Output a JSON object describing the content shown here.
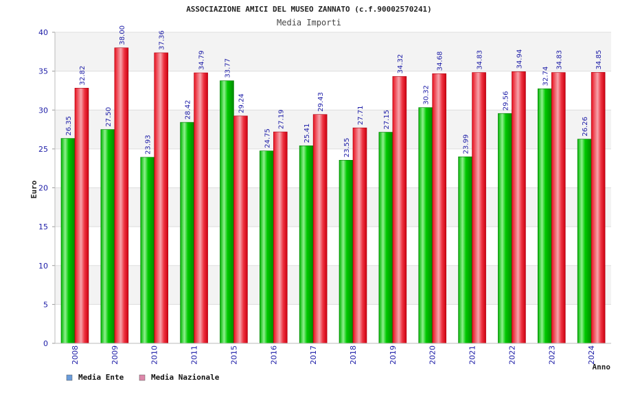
{
  "chart_data": {
    "type": "bar",
    "title": "ASSOCIAZIONE AMICI DEL MUSEO ZANNATO (c.f.90002570241)",
    "subtitle": "Media Importi",
    "xlabel": "Anno",
    "ylabel": "Euro",
    "ylim": [
      0,
      40
    ],
    "yticks": [
      0,
      5,
      10,
      15,
      20,
      25,
      30,
      35,
      40
    ],
    "categories": [
      "2008",
      "2009",
      "2010",
      "2011",
      "2015",
      "2016",
      "2017",
      "2018",
      "2019",
      "2020",
      "2021",
      "2022",
      "2023",
      "2024"
    ],
    "series": [
      {
        "name": "Media Ente",
        "color": "#00aa00",
        "legend_color": "#6a9cdb",
        "values": [
          26.35,
          27.5,
          23.93,
          28.42,
          33.77,
          24.75,
          25.41,
          23.55,
          27.15,
          30.32,
          23.99,
          29.56,
          32.74,
          26.26
        ],
        "labels": [
          "26.35",
          "27.50",
          "23.93",
          "28.42",
          "33.77",
          "24.75",
          "25.41",
          "23.55",
          "27.15",
          "30.32",
          "23.99",
          "29.56",
          "32.74",
          "26.26"
        ]
      },
      {
        "name": "Media Nazionale",
        "color": "#ee1122",
        "legend_color": "#dd88aa",
        "values": [
          32.82,
          38.0,
          37.36,
          34.79,
          29.24,
          27.19,
          29.43,
          27.71,
          34.32,
          34.68,
          34.83,
          34.94,
          34.83,
          34.85
        ],
        "labels": [
          "32.82",
          "38.00",
          "37.36",
          "34.79",
          "29.24",
          "27.19",
          "29.43",
          "27.71",
          "34.32",
          "34.68",
          "34.83",
          "34.94",
          "34.83",
          "34.85"
        ]
      }
    ],
    "legend_position": "bottom-left",
    "grid": true
  }
}
